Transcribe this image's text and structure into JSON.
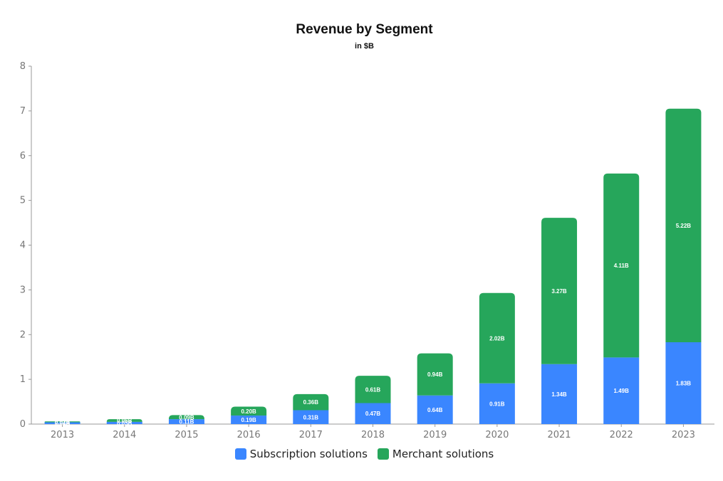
{
  "chart_data": {
    "type": "bar",
    "stacked": true,
    "title": "Revenue by Segment",
    "subtitle": "in $B",
    "xlabel": "",
    "ylabel": "",
    "ylim": [
      0,
      8
    ],
    "yticks": [
      "0",
      "1",
      "2",
      "3",
      "4",
      "5",
      "6",
      "7",
      "8"
    ],
    "categories": [
      "2013",
      "2014",
      "2015",
      "2016",
      "2017",
      "2018",
      "2019",
      "2020",
      "2021",
      "2022",
      "2023"
    ],
    "series": [
      {
        "name": "Subscription solutions",
        "color": "#3a86ff",
        "values": [
          0.04,
          0.05,
          0.11,
          0.19,
          0.31,
          0.47,
          0.64,
          0.91,
          1.34,
          1.49,
          1.83
        ],
        "labels": [
          "0.04B",
          "0.05B",
          "0.11B",
          "0.19B",
          "0.31B",
          "0.47B",
          "0.64B",
          "0.91B",
          "1.34B",
          "1.49B",
          "1.83B"
        ]
      },
      {
        "name": "Merchant solutions",
        "color": "#26a65b",
        "values": [
          0.02,
          0.06,
          0.09,
          0.2,
          0.36,
          0.61,
          0.94,
          2.02,
          3.27,
          4.11,
          5.22
        ],
        "labels": [
          "0.02B",
          "0.06B",
          "0.09B",
          "0.20B",
          "0.36B",
          "0.61B",
          "0.94B",
          "2.02B",
          "3.27B",
          "4.11B",
          "5.22B"
        ]
      }
    ],
    "legend": "bottom-center"
  }
}
